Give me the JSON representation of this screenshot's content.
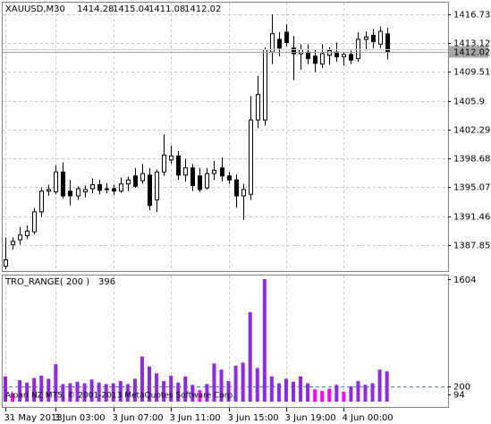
{
  "chart_data": [
    {
      "type": "candlestick",
      "symbol": "XAUUSD,M30",
      "categories": [
        "31 May 2013",
        null,
        null,
        null,
        null,
        null,
        null,
        "3 Jun 03:00",
        null,
        null,
        null,
        null,
        null,
        null,
        null,
        "3 Jun 07:00",
        null,
        null,
        null,
        null,
        null,
        null,
        null,
        "3 Jun 11:00",
        null,
        null,
        null,
        null,
        null,
        null,
        null,
        "3 Jun 15:00",
        null,
        null,
        null,
        null,
        null,
        null,
        null,
        "3 Jun 19:00",
        null,
        null,
        null,
        null,
        null,
        null,
        null,
        "4 Jun 00:00",
        null,
        null,
        null,
        null,
        null,
        null
      ],
      "open": [
        1385.2,
        1387.9,
        1388.5,
        1389.0,
        1389.5,
        1392.0,
        1394.6,
        1394.5,
        1397.0,
        1394.6,
        1394.0,
        1394.5,
        1394.9,
        1395.4,
        1394.8,
        1394.9,
        1394.6,
        1395.5,
        1396.5,
        1395.9,
        1396.6,
        1393.5,
        1397.0,
        1398.5,
        1399.0,
        1396.6,
        1397.5,
        1396.5,
        1395.0,
        1396.8,
        1397.5,
        1396.5,
        1396.0,
        1394.0,
        1394.2,
        1403.5,
        1403.5,
        1412.0,
        1413.6,
        1414.5,
        1412.5,
        1411.8,
        1412.0,
        1411.5,
        1410.5,
        1411.6,
        1412.0,
        1411.4,
        1411.7,
        1411.2,
        1413.6,
        1414.1,
        1413.0,
        1414.28
      ],
      "high": [
        1388.8,
        1388.8,
        1390.1,
        1390.3,
        1392.5,
        1395.0,
        1395.4,
        1397.8,
        1398.2,
        1396.0,
        1395.2,
        1395.3,
        1396.2,
        1396.0,
        1395.6,
        1395.4,
        1396.3,
        1396.4,
        1397.5,
        1398.0,
        1397.5,
        1397.3,
        1401.7,
        1400.3,
        1399.6,
        1398.6,
        1398.0,
        1397.5,
        1397.5,
        1398.4,
        1398.8,
        1397.0,
        1396.7,
        1395.5,
        1406.5,
        1409.0,
        1412.6,
        1416.7,
        1414.5,
        1415.5,
        1414.0,
        1413.0,
        1413.0,
        1412.3,
        1413.0,
        1412.6,
        1413.2,
        1412.0,
        1412.2,
        1414.5,
        1414.6,
        1414.9,
        1415.2,
        1415.04
      ],
      "low": [
        1384.8,
        1387.3,
        1387.9,
        1388.6,
        1389.2,
        1391.4,
        1394.0,
        1394.2,
        1393.7,
        1392.8,
        1393.5,
        1393.8,
        1394.3,
        1394.2,
        1394.3,
        1394.1,
        1394.4,
        1394.6,
        1395.0,
        1395.5,
        1392.2,
        1392.0,
        1396.5,
        1398.0,
        1396.0,
        1395.8,
        1394.6,
        1394.5,
        1394.8,
        1396.0,
        1395.8,
        1395.5,
        1392.5,
        1391.0,
        1393.5,
        1402.5,
        1402.8,
        1410.5,
        1411.5,
        1412.7,
        1408.5,
        1409.8,
        1410.5,
        1409.5,
        1410.0,
        1410.4,
        1410.8,
        1410.3,
        1410.5,
        1410.8,
        1412.2,
        1412.5,
        1412.5,
        1411.08
      ],
      "close": [
        1386.0,
        1388.3,
        1389.1,
        1389.6,
        1392.0,
        1394.6,
        1394.8,
        1397.0,
        1394.0,
        1394.0,
        1394.9,
        1394.8,
        1395.4,
        1394.7,
        1394.9,
        1394.6,
        1395.5,
        1396.0,
        1395.2,
        1396.8,
        1392.8,
        1397.0,
        1399.1,
        1399.0,
        1396.6,
        1397.5,
        1395.3,
        1394.8,
        1396.8,
        1397.2,
        1396.5,
        1396.0,
        1394.0,
        1394.8,
        1403.5,
        1406.7,
        1412.3,
        1414.3,
        1412.5,
        1413.2,
        1411.8,
        1412.3,
        1411.2,
        1410.6,
        1411.8,
        1412.2,
        1411.4,
        1411.7,
        1411.0,
        1413.6,
        1413.9,
        1413.3,
        1414.6,
        1412.02
      ],
      "up_color": "#ffffff",
      "down_color": "#000000",
      "ylim": [
        1384.48,
        1418.3
      ],
      "yticks": [
        1416.73,
        1413.12,
        1409.51,
        1405.9,
        1402.29,
        1398.68,
        1395.07,
        1391.46,
        1387.85
      ],
      "grid": true
    },
    {
      "type": "bar",
      "title": "TRO_RANGE( 200 )",
      "watermark": "Alpari NZ MT5, © 2001-2013 MetaQuotes Software Corp.",
      "series": [
        {
          "color": "#8a2be2",
          "values": [
            330,
            null,
            280,
            250,
            310,
            340,
            300,
            490,
            230,
            240,
            260,
            240,
            290,
            250,
            230,
            240,
            270,
            230,
            300,
            590,
            460,
            370,
            270,
            340,
            250,
            330,
            220,
            null,
            230,
            500,
            420,
            270,
            470,
            510,
            1170,
            440,
            1604,
            330,
            240,
            300,
            260,
            330,
            240,
            null,
            null,
            null,
            220,
            null,
            200,
            270,
            220,
            240,
            420,
            396
          ]
        },
        {
          "color": "#ff00ff",
          "values": [
            null,
            110,
            null,
            null,
            null,
            null,
            null,
            null,
            null,
            null,
            null,
            null,
            null,
            null,
            null,
            null,
            null,
            null,
            null,
            null,
            null,
            null,
            null,
            null,
            null,
            null,
            null,
            150,
            null,
            null,
            null,
            null,
            null,
            null,
            null,
            null,
            null,
            null,
            null,
            null,
            null,
            null,
            null,
            160,
            140,
            170,
            null,
            130,
            null,
            null,
            null,
            null,
            null,
            null
          ]
        }
      ],
      "ylim": [
        0,
        1604
      ],
      "yticks": [
        1604,
        200,
        94
      ],
      "levels": [
        200
      ]
    }
  ]
}
